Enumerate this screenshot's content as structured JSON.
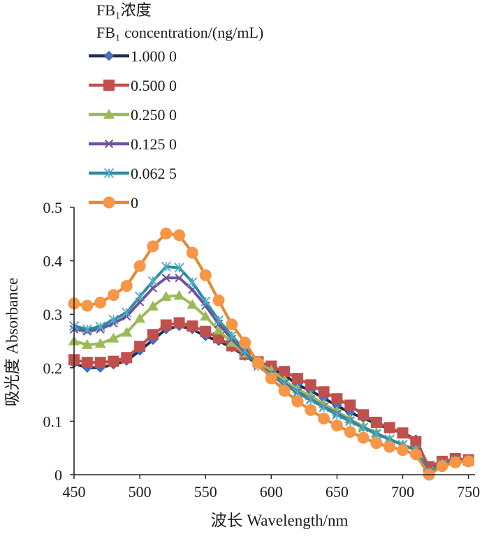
{
  "chart_data": {
    "type": "line",
    "legend_title_line1": "FB₁浓度",
    "legend_title_line2": "FB₁ concentration/(ng/mL)",
    "xlabel": "波长 Wavelength/nm",
    "ylabel": "吸光度 Absorbance",
    "xlim": [
      450,
      755
    ],
    "ylim": [
      0,
      0.5
    ],
    "x_ticks": [
      450,
      500,
      550,
      600,
      650,
      700,
      750
    ],
    "y_ticks": [
      0,
      0.1,
      0.2,
      0.3,
      0.4,
      0.5
    ],
    "y_tick_labels": [
      "0",
      "0.1",
      "0.2",
      "0.3",
      "0.4",
      "0.5"
    ],
    "legend_position": "top-left",
    "grid": false,
    "x": [
      450,
      460,
      470,
      480,
      490,
      500,
      510,
      520,
      530,
      540,
      550,
      560,
      570,
      580,
      590,
      600,
      610,
      620,
      630,
      640,
      650,
      660,
      670,
      680,
      690,
      700,
      710,
      720,
      730,
      740,
      750
    ],
    "series": [
      {
        "name": "1.000 0",
        "color": "#4472c4",
        "line_color": "#1b2f4a",
        "marker": "diamond",
        "values": [
          0.208,
          0.2,
          0.2,
          0.206,
          0.213,
          0.232,
          0.252,
          0.272,
          0.278,
          0.272,
          0.259,
          0.25,
          0.238,
          0.222,
          0.207,
          0.198,
          0.187,
          0.168,
          0.157,
          0.143,
          0.129,
          0.116,
          0.106,
          0.095,
          0.086,
          0.078,
          0.066,
          0.012,
          0.023,
          0.028,
          0.027
        ]
      },
      {
        "name": "0.500 0",
        "color": "#c0504d",
        "line_color": "#c0504d",
        "marker": "square",
        "values": [
          0.215,
          0.21,
          0.21,
          0.212,
          0.219,
          0.24,
          0.262,
          0.28,
          0.284,
          0.278,
          0.268,
          0.256,
          0.241,
          0.225,
          0.211,
          0.203,
          0.193,
          0.18,
          0.168,
          0.155,
          0.142,
          0.13,
          0.112,
          0.098,
          0.088,
          0.078,
          0.062,
          0.015,
          0.025,
          0.03,
          0.028
        ]
      },
      {
        "name": "0.250 0",
        "color": "#9bbb59",
        "line_color": "#9bbb59",
        "marker": "triangle",
        "values": [
          0.25,
          0.243,
          0.245,
          0.255,
          0.266,
          0.292,
          0.315,
          0.333,
          0.335,
          0.318,
          0.296,
          0.27,
          0.247,
          0.227,
          0.209,
          0.195,
          0.176,
          0.16,
          0.147,
          0.132,
          0.118,
          0.104,
          0.09,
          0.078,
          0.066,
          0.056,
          0.046,
          0.004,
          0.02,
          0.025,
          0.025
        ]
      },
      {
        "name": "0.125 0",
        "color": "#7050a0",
        "line_color": "#7050a0",
        "marker": "x",
        "values": [
          0.272,
          0.268,
          0.272,
          0.283,
          0.296,
          0.323,
          0.349,
          0.368,
          0.368,
          0.346,
          0.316,
          0.282,
          0.254,
          0.229,
          0.205,
          0.189,
          0.171,
          0.155,
          0.141,
          0.127,
          0.114,
          0.101,
          0.088,
          0.077,
          0.066,
          0.056,
          0.046,
          0.005,
          0.02,
          0.026,
          0.025
        ]
      },
      {
        "name": "0.062 5",
        "color": "#4bacc6",
        "line_color": "#2e8aa0",
        "marker": "asterisk",
        "values": [
          0.278,
          0.272,
          0.277,
          0.29,
          0.303,
          0.333,
          0.362,
          0.389,
          0.387,
          0.36,
          0.324,
          0.289,
          0.26,
          0.232,
          0.203,
          0.186,
          0.169,
          0.153,
          0.14,
          0.126,
          0.112,
          0.1,
          0.088,
          0.076,
          0.066,
          0.056,
          0.046,
          0.006,
          0.02,
          0.026,
          0.025
        ]
      },
      {
        "name": "0",
        "color": "#f79646",
        "line_color": "#e8872e",
        "marker": "circle",
        "values": [
          0.32,
          0.316,
          0.322,
          0.336,
          0.353,
          0.39,
          0.427,
          0.451,
          0.448,
          0.415,
          0.373,
          0.326,
          0.281,
          0.247,
          0.209,
          0.18,
          0.157,
          0.137,
          0.121,
          0.105,
          0.092,
          0.08,
          0.069,
          0.059,
          0.052,
          0.046,
          0.038,
          0.0,
          0.016,
          0.023,
          0.025
        ]
      }
    ]
  }
}
